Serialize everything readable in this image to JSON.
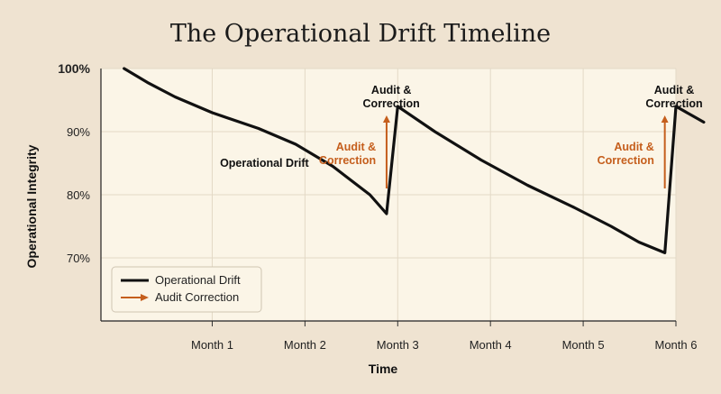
{
  "chart_data": {
    "type": "line",
    "title": "The Operational Drift Timeline",
    "xlabel": "Time",
    "ylabel": "Operational Integrity",
    "x_ticks": [
      "Month 1",
      "Month 2",
      "Month 3",
      "Month 4",
      "Month 5",
      "Month 6"
    ],
    "y_ticks": [
      "100%",
      "90%",
      "80%",
      "70%"
    ],
    "xlim": [
      -0.2,
      6.0
    ],
    "ylim": [
      60,
      100
    ],
    "grid": true,
    "legend_position": "bottom-left",
    "series": [
      {
        "name": "Operational Drift",
        "color": "#111111",
        "x": [
          0.05,
          0.3,
          0.6,
          1.0,
          1.5,
          1.9,
          2.3,
          2.7,
          2.88,
          3.0,
          3.4,
          3.9,
          4.4,
          4.9,
          5.3,
          5.6,
          5.88,
          6.0,
          6.3
        ],
        "y": [
          100,
          97.8,
          95.5,
          93,
          90.5,
          88,
          84.5,
          80,
          77,
          94,
          90,
          85.5,
          81.5,
          78,
          75,
          72.5,
          70.8,
          94,
          91.5
        ]
      }
    ],
    "legend": [
      {
        "label": "Operational Drift",
        "kind": "line",
        "color": "#111111"
      },
      {
        "label": "Audit Correction",
        "kind": "arrow",
        "color": "#c55e1c"
      }
    ],
    "annotations": [
      {
        "text": "Operational Drift",
        "x": 1.2,
        "y": 85,
        "color": "#111111"
      },
      {
        "text_lines": [
          "Audit &",
          "Correction"
        ],
        "x": 2.95,
        "y": 96,
        "color": "#111111"
      },
      {
        "text_lines": [
          "Audit &",
          "Correction"
        ],
        "x": 6.0,
        "y": 96,
        "color": "#111111"
      },
      {
        "text_lines": [
          "Audit &",
          "Correction"
        ],
        "x": 2.6,
        "y": 87,
        "color": "#c55e1c"
      },
      {
        "text_lines": [
          "Audit &",
          "Correction"
        ],
        "x": 5.6,
        "y": 87,
        "color": "#c55e1c"
      }
    ],
    "arrows": [
      {
        "x": 2.88,
        "y_from": 81,
        "y_to": 93,
        "color": "#c55e1c"
      },
      {
        "x": 5.88,
        "y_from": 81,
        "y_to": 93,
        "color": "#c55e1c"
      }
    ]
  }
}
